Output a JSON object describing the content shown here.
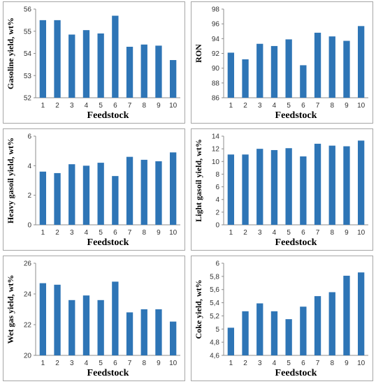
{
  "chart_data": [
    {
      "type": "bar",
      "categories": [
        "1",
        "2",
        "3",
        "4",
        "5",
        "6",
        "7",
        "8",
        "9",
        "10"
      ],
      "values": [
        55.5,
        55.5,
        54.85,
        55.05,
        54.9,
        55.7,
        54.3,
        54.4,
        54.35,
        53.7
      ],
      "ylabel": "Gasoline yield,  wt%",
      "xlabel": "Feedstock",
      "ylim": [
        52,
        56
      ],
      "yticks": [
        "52",
        "53",
        "54",
        "55",
        "56"
      ],
      "bar_color": "#2e75b6"
    },
    {
      "type": "bar",
      "categories": [
        "1",
        "2",
        "3",
        "4",
        "5",
        "6",
        "7",
        "8",
        "9",
        "10"
      ],
      "values": [
        92.1,
        91.2,
        93.3,
        93.0,
        93.9,
        90.4,
        94.8,
        94.3,
        93.7,
        95.7
      ],
      "ylabel": "RON",
      "xlabel": "Feedstock",
      "ylim": [
        86,
        98
      ],
      "yticks": [
        "86",
        "88",
        "90",
        "92",
        "94",
        "96",
        "98"
      ],
      "bar_color": "#2e75b6"
    },
    {
      "type": "bar",
      "categories": [
        "1",
        "2",
        "3",
        "4",
        "5",
        "6",
        "7",
        "8",
        "9",
        "10"
      ],
      "values": [
        3.6,
        3.5,
        4.1,
        4.0,
        4.2,
        3.3,
        4.6,
        4.4,
        4.3,
        4.9
      ],
      "ylabel": "Heavy gasoil yield,  wt%",
      "xlabel": "Feedstock",
      "ylim": [
        0,
        6
      ],
      "yticks": [
        "0",
        "2",
        "4",
        "6"
      ],
      "bar_color": "#2e75b6"
    },
    {
      "type": "bar",
      "categories": [
        "1",
        "2",
        "3",
        "4",
        "5",
        "6",
        "7",
        "8",
        "9",
        "10"
      ],
      "values": [
        11.1,
        11.1,
        12.0,
        11.8,
        12.1,
        10.8,
        12.8,
        12.5,
        12.4,
        13.3
      ],
      "ylabel": "Light gasoil yield,  wt%",
      "xlabel": "Feedstock",
      "ylim": [
        0,
        14
      ],
      "yticks": [
        "0",
        "2",
        "4",
        "6",
        "8",
        "10",
        "12",
        "14"
      ],
      "bar_color": "#2e75b6"
    },
    {
      "type": "bar",
      "categories": [
        "1",
        "2",
        "3",
        "4",
        "5",
        "6",
        "7",
        "8",
        "9",
        "10"
      ],
      "values": [
        24.7,
        24.6,
        23.6,
        23.9,
        23.6,
        24.8,
        22.8,
        23.0,
        23.0,
        22.2
      ],
      "ylabel": "Wet gas yield,  wt%",
      "xlabel": "Feedstock",
      "ylim": [
        20,
        26
      ],
      "yticks": [
        "20",
        "22",
        "24",
        "26"
      ],
      "bar_color": "#2e75b6"
    },
    {
      "type": "bar",
      "categories": [
        "1",
        "2",
        "3",
        "4",
        "5",
        "6",
        "7",
        "8",
        "9",
        "10"
      ],
      "values": [
        5.02,
        5.27,
        5.39,
        5.27,
        5.15,
        5.34,
        5.5,
        5.56,
        5.81,
        5.86
      ],
      "ylabel": "Coke yield,  wt%",
      "xlabel": "Feedstock",
      "ylim": [
        4.6,
        6.0
      ],
      "yticks": [
        "4,6",
        "4,8",
        "5",
        "5,2",
        "5,4",
        "5,6",
        "5,8",
        "6"
      ],
      "bar_color": "#2e75b6"
    }
  ]
}
